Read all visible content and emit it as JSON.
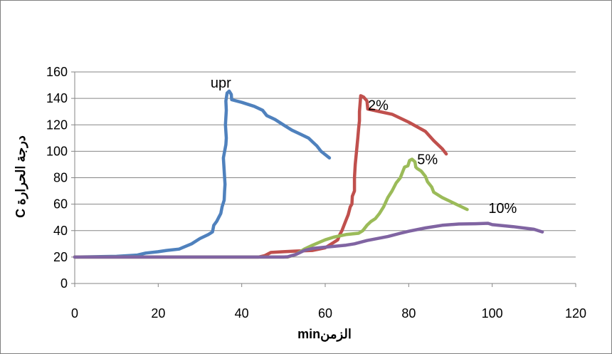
{
  "chart_data": {
    "type": "line",
    "title": "",
    "xlabel": "الزمنmin",
    "ylabel": "درجة الحرارة C",
    "xlim": [
      0,
      120
    ],
    "ylim": [
      0,
      160
    ],
    "xticks": [
      0,
      20,
      40,
      60,
      80,
      100,
      120
    ],
    "yticks": [
      0,
      20,
      40,
      60,
      80,
      100,
      120,
      140,
      160
    ],
    "grid": "horizontal",
    "legend": "none",
    "series": [
      {
        "name": "upr",
        "color": "#4F81BD",
        "points": [
          [
            0,
            20
          ],
          [
            10,
            20.5
          ],
          [
            15,
            21.5
          ],
          [
            17,
            23
          ],
          [
            20,
            24
          ],
          [
            22,
            25
          ],
          [
            25,
            26
          ],
          [
            28,
            30
          ],
          [
            30,
            34
          ],
          [
            32,
            37
          ],
          [
            33,
            39
          ],
          [
            33.3,
            44
          ],
          [
            34,
            47
          ],
          [
            34.5,
            50
          ],
          [
            35,
            53
          ],
          [
            35.3,
            58
          ],
          [
            35.8,
            63
          ],
          [
            35.9,
            70
          ],
          [
            36,
            75
          ],
          [
            35.6,
            95
          ],
          [
            36.2,
            105
          ],
          [
            36.3,
            110
          ],
          [
            36.1,
            120
          ],
          [
            36.3,
            131
          ],
          [
            36.2,
            138
          ],
          [
            36.5,
            144
          ],
          [
            37,
            145.5
          ],
          [
            37.5,
            143
          ],
          [
            37.6,
            139
          ],
          [
            40,
            137
          ],
          [
            43,
            134
          ],
          [
            45,
            131
          ],
          [
            46,
            127
          ],
          [
            48,
            124
          ],
          [
            50,
            120
          ],
          [
            52,
            116
          ],
          [
            54,
            113
          ],
          [
            56,
            110
          ],
          [
            57,
            107
          ],
          [
            58,
            104
          ],
          [
            59,
            100
          ],
          [
            61,
            95
          ]
        ]
      },
      {
        "name": "2%",
        "color": "#C0504D",
        "points": [
          [
            0,
            20
          ],
          [
            44,
            20
          ],
          [
            45.5,
            21
          ],
          [
            47,
            23.5
          ],
          [
            50,
            24
          ],
          [
            53,
            24.5
          ],
          [
            57,
            25
          ],
          [
            60,
            27
          ],
          [
            62,
            31
          ],
          [
            63,
            33
          ],
          [
            63.5,
            37
          ],
          [
            64,
            40
          ],
          [
            64.5,
            44
          ],
          [
            65,
            48
          ],
          [
            65.5,
            52
          ],
          [
            66,
            58
          ],
          [
            66.4,
            60
          ],
          [
            66.5,
            66
          ],
          [
            67,
            70
          ],
          [
            67,
            80
          ],
          [
            67.2,
            90
          ],
          [
            67.5,
            100
          ],
          [
            67.8,
            110
          ],
          [
            68,
            117
          ],
          [
            68.2,
            123
          ],
          [
            68.2,
            130
          ],
          [
            68.5,
            142
          ],
          [
            69.2,
            141
          ],
          [
            70,
            138
          ],
          [
            70.2,
            132
          ],
          [
            73,
            130
          ],
          [
            76,
            128
          ],
          [
            80,
            122
          ],
          [
            84,
            115
          ],
          [
            86,
            108
          ],
          [
            88,
            102
          ],
          [
            89,
            98
          ]
        ]
      },
      {
        "name": "5%",
        "color": "#9BBB59",
        "points": [
          [
            0,
            20
          ],
          [
            51,
            20
          ],
          [
            53,
            22
          ],
          [
            55,
            26
          ],
          [
            57,
            29
          ],
          [
            60,
            33
          ],
          [
            62,
            35
          ],
          [
            65,
            37
          ],
          [
            68,
            38
          ],
          [
            69,
            40
          ],
          [
            70,
            44
          ],
          [
            71,
            47
          ],
          [
            72,
            49
          ],
          [
            73,
            53
          ],
          [
            74,
            58
          ],
          [
            75,
            65
          ],
          [
            76,
            70
          ],
          [
            77,
            76
          ],
          [
            78,
            80
          ],
          [
            78.5,
            84
          ],
          [
            79,
            88
          ],
          [
            79.8,
            89
          ],
          [
            80.2,
            93
          ],
          [
            80.8,
            94
          ],
          [
            81.5,
            92
          ],
          [
            81.7,
            88
          ],
          [
            82,
            87
          ],
          [
            83,
            85
          ],
          [
            84,
            81
          ],
          [
            84.5,
            77
          ],
          [
            85.5,
            73
          ],
          [
            86,
            69
          ],
          [
            88,
            65
          ],
          [
            90,
            62
          ],
          [
            92,
            59
          ],
          [
            94,
            56
          ]
        ]
      },
      {
        "name": "10%",
        "color": "#8064A2",
        "points": [
          [
            0,
            20
          ],
          [
            50,
            20
          ],
          [
            51,
            20.2
          ],
          [
            53,
            22
          ],
          [
            55,
            25
          ],
          [
            57,
            26.5
          ],
          [
            60,
            27.5
          ],
          [
            65,
            29
          ],
          [
            67,
            30
          ],
          [
            70,
            32.5
          ],
          [
            75,
            35.5
          ],
          [
            78,
            38
          ],
          [
            80,
            39.5
          ],
          [
            84,
            42
          ],
          [
            88,
            44
          ],
          [
            92,
            45
          ],
          [
            96,
            45.2
          ],
          [
            99,
            45.5
          ],
          [
            100,
            44.5
          ],
          [
            105,
            43
          ],
          [
            110,
            41
          ],
          [
            112,
            39
          ]
        ]
      }
    ],
    "annotations": [
      {
        "text": "upr",
        "x": 35,
        "y": 152
      },
      {
        "text": "2%",
        "x": 72.7,
        "y": 135
      },
      {
        "text": "5%",
        "x": 84.5,
        "y": 94
      },
      {
        "text": "10%",
        "x": 102.5,
        "y": 57
      }
    ]
  }
}
